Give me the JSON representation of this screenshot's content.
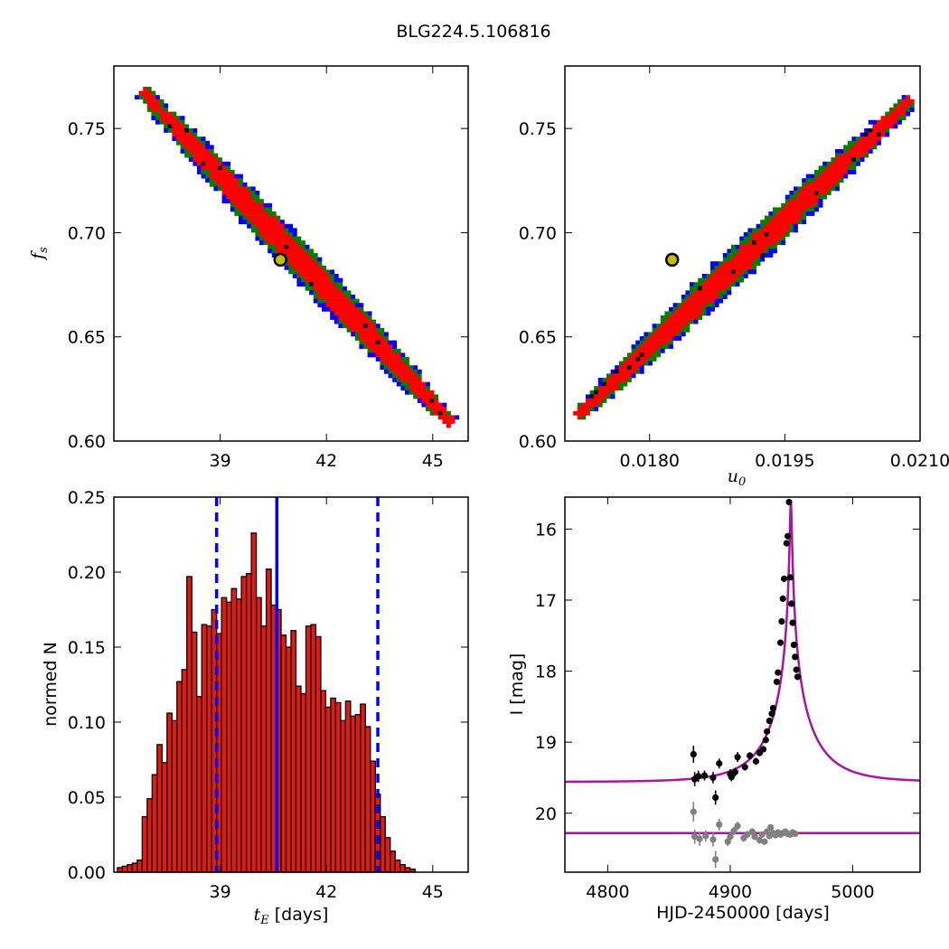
{
  "figure": {
    "title": "BLG224.5.106816"
  },
  "colors": {
    "sigma3": "#0000ff",
    "sigma2": "#007f00",
    "sigma1": "#ff0000",
    "dense": "#000000",
    "bestfit_face": "#bfbf00",
    "hist_bar": "#e31a10",
    "hist_line": "#0000ff",
    "model": "#a6169f",
    "data_main": "#000000",
    "data_resid": "#808080"
  },
  "chart_data": [
    {
      "id": "tE_fs",
      "type": "heatmap",
      "title": "",
      "xlabel": "",
      "ylabel": "f_s",
      "xlim": [
        36.0,
        46.0
      ],
      "ylim": [
        0.6,
        0.78
      ],
      "xticks": [
        39,
        42,
        45
      ],
      "xtick_labels": [
        "39",
        "42",
        "45"
      ],
      "yticks": [
        0.6,
        0.65,
        0.7,
        0.75
      ],
      "ytick_labels": [
        "0.60",
        "0.65",
        "0.70",
        "0.75"
      ],
      "ridge": {
        "x0": 36.8,
        "y0": 0.768,
        "x1": 45.5,
        "y1": 0.609
      },
      "best_fit": {
        "x": 40.7,
        "y": 0.687
      },
      "levels": [
        "3-sigma",
        "2-sigma",
        "1-sigma"
      ]
    },
    {
      "id": "u0_fs",
      "type": "heatmap",
      "title": "",
      "xlabel": "u_0",
      "ylabel": "",
      "xlim": [
        0.01706,
        0.021
      ],
      "ylim": [
        0.6,
        0.78
      ],
      "xticks": [
        0.018,
        0.0195,
        0.021
      ],
      "xtick_labels": [
        "0.0180",
        "0.0195",
        "0.0210"
      ],
      "yticks": [
        0.6,
        0.65,
        0.7,
        0.75
      ],
      "ytick_labels": [
        "0.60",
        "0.65",
        "0.70",
        "0.75"
      ],
      "ridge": {
        "x0": 0.0172,
        "y0": 0.612,
        "x1": 0.0209,
        "y1": 0.764
      },
      "best_fit": {
        "x": 0.01825,
        "y": 0.687
      },
      "levels": [
        "3-sigma",
        "2-sigma",
        "1-sigma"
      ]
    },
    {
      "id": "tE_hist",
      "type": "bar",
      "title": "",
      "xlabel": "t_E [days]",
      "ylabel": "normed N",
      "xlim": [
        36.0,
        46.0
      ],
      "ylim": [
        0.0,
        0.25
      ],
      "xticks": [
        39,
        42,
        45
      ],
      "xtick_labels": [
        "39",
        "42",
        "45"
      ],
      "yticks": [
        0.0,
        0.05,
        0.1,
        0.15,
        0.2,
        0.25
      ],
      "ytick_labels": [
        "0.00",
        "0.05",
        "0.10",
        "0.15",
        "0.20",
        "0.25"
      ],
      "bin_start": 36.1,
      "bin_width": 0.14,
      "values": [
        0.003,
        0.004,
        0.005,
        0.006,
        0.008,
        0.037,
        0.049,
        0.065,
        0.085,
        0.073,
        0.106,
        0.101,
        0.127,
        0.135,
        0.197,
        0.16,
        0.117,
        0.165,
        0.164,
        0.175,
        0.159,
        0.183,
        0.18,
        0.189,
        0.182,
        0.197,
        0.199,
        0.226,
        0.183,
        0.164,
        0.202,
        0.178,
        0.175,
        0.158,
        0.15,
        0.161,
        0.124,
        0.119,
        0.164,
        0.165,
        0.157,
        0.121,
        0.11,
        0.116,
        0.113,
        0.101,
        0.114,
        0.104,
        0.105,
        0.112,
        0.097,
        0.074,
        0.052,
        0.037,
        0.023,
        0.014,
        0.008,
        0.005,
        0.003,
        0.002
      ],
      "median": 40.6,
      "lower": 38.9,
      "upper": 43.45
    },
    {
      "id": "lightcurve",
      "type": "scatter",
      "title": "",
      "xlabel": "HJD-2450000 [days]",
      "ylabel": "I [mag]",
      "xlim": [
        4765,
        5055
      ],
      "ylim": [
        20.83,
        15.55
      ],
      "xticks": [
        4800,
        4900,
        5000
      ],
      "xtick_labels": [
        "4800",
        "4900",
        "5000"
      ],
      "yticks": [
        16,
        17,
        18,
        19,
        20
      ],
      "ytick_labels": [
        "16",
        "17",
        "18",
        "19",
        "20"
      ],
      "model": {
        "t0": 4949.5,
        "tE": 40.6,
        "u0": 0.0183,
        "fs": 0.687,
        "I_base": 19.56
      },
      "residual_level": 20.28,
      "points": [
        {
          "x": 4870,
          "y": 19.17,
          "err": 0.12
        },
        {
          "x": 4871,
          "y": 19.52,
          "err": 0.1
        },
        {
          "x": 4874,
          "y": 19.48,
          "err": 0.08
        },
        {
          "x": 4879,
          "y": 19.47,
          "err": 0.07
        },
        {
          "x": 4886,
          "y": 19.5,
          "err": 0.08
        },
        {
          "x": 4888,
          "y": 19.78,
          "err": 0.1
        },
        {
          "x": 4891,
          "y": 19.3,
          "err": 0.07
        },
        {
          "x": 4900,
          "y": 19.45,
          "err": 0.07
        },
        {
          "x": 4901,
          "y": 19.49,
          "err": 0.06
        },
        {
          "x": 4904,
          "y": 19.42,
          "err": 0.06
        },
        {
          "x": 4906,
          "y": 19.21,
          "err": 0.07
        },
        {
          "x": 4912,
          "y": 19.35,
          "err": 0.05
        },
        {
          "x": 4916,
          "y": 19.19,
          "err": 0.05
        },
        {
          "x": 4921,
          "y": 19.27,
          "err": 0.05
        },
        {
          "x": 4924,
          "y": 19.15,
          "err": 0.05
        },
        {
          "x": 4927,
          "y": 19.1,
          "err": 0.04
        },
        {
          "x": 4929,
          "y": 18.97,
          "err": 0.04
        },
        {
          "x": 4930,
          "y": 18.85,
          "err": 0.04
        },
        {
          "x": 4932,
          "y": 18.7,
          "err": 0.04
        },
        {
          "x": 4934,
          "y": 18.6,
          "err": 0.03
        },
        {
          "x": 4935,
          "y": 18.52,
          "err": 0.03
        },
        {
          "x": 4938,
          "y": 18.15,
          "err": 0.03
        },
        {
          "x": 4939,
          "y": 18.02,
          "err": 0.03
        },
        {
          "x": 4941,
          "y": 17.6,
          "err": 0.03
        },
        {
          "x": 4942,
          "y": 17.3,
          "err": 0.03
        },
        {
          "x": 4943,
          "y": 16.98,
          "err": 0.03
        },
        {
          "x": 4944,
          "y": 16.7,
          "err": 0.03
        },
        {
          "x": 4946,
          "y": 16.2,
          "err": 0.02
        },
        {
          "x": 4947,
          "y": 16.1,
          "err": 0.02
        },
        {
          "x": 4948,
          "y": 15.62,
          "err": 0.02
        },
        {
          "x": 4949,
          "y": 16.68,
          "err": 0.03
        },
        {
          "x": 4950,
          "y": 17.05,
          "err": 0.03
        },
        {
          "x": 4951,
          "y": 17.32,
          "err": 0.03
        },
        {
          "x": 4952,
          "y": 17.63,
          "err": 0.03
        },
        {
          "x": 4953,
          "y": 17.8,
          "err": 0.03
        },
        {
          "x": 4954,
          "y": 17.98,
          "err": 0.03
        },
        {
          "x": 4955,
          "y": 18.08,
          "err": 0.03
        }
      ],
      "residuals": [
        {
          "x": 4870,
          "y": 19.98,
          "err": 0.14
        },
        {
          "x": 4871,
          "y": 20.33,
          "err": 0.1
        },
        {
          "x": 4875,
          "y": 20.36,
          "err": 0.1
        },
        {
          "x": 4880,
          "y": 20.32,
          "err": 0.08
        },
        {
          "x": 4886,
          "y": 20.37,
          "err": 0.1
        },
        {
          "x": 4888,
          "y": 20.65,
          "err": 0.12
        },
        {
          "x": 4891,
          "y": 20.16,
          "err": 0.08
        },
        {
          "x": 4898,
          "y": 20.4,
          "err": 0.06
        },
        {
          "x": 4900,
          "y": 20.33,
          "err": 0.07
        },
        {
          "x": 4903,
          "y": 20.25,
          "err": 0.06
        },
        {
          "x": 4906,
          "y": 20.18,
          "err": 0.06
        },
        {
          "x": 4911,
          "y": 20.35,
          "err": 0.05
        },
        {
          "x": 4914,
          "y": 20.3,
          "err": 0.05
        },
        {
          "x": 4918,
          "y": 20.26,
          "err": 0.05
        },
        {
          "x": 4920,
          "y": 20.33,
          "err": 0.05
        },
        {
          "x": 4924,
          "y": 20.38,
          "err": 0.05
        },
        {
          "x": 4926,
          "y": 20.3,
          "err": 0.04
        },
        {
          "x": 4928,
          "y": 20.4,
          "err": 0.04
        },
        {
          "x": 4930,
          "y": 20.26,
          "err": 0.04
        },
        {
          "x": 4932,
          "y": 20.32,
          "err": 0.04
        },
        {
          "x": 4933,
          "y": 20.2,
          "err": 0.04
        },
        {
          "x": 4935,
          "y": 20.28,
          "err": 0.03
        },
        {
          "x": 4937,
          "y": 20.31,
          "err": 0.03
        },
        {
          "x": 4939,
          "y": 20.27,
          "err": 0.03
        },
        {
          "x": 4941,
          "y": 20.3,
          "err": 0.03
        },
        {
          "x": 4943,
          "y": 20.28,
          "err": 0.03
        },
        {
          "x": 4945,
          "y": 20.26,
          "err": 0.03
        },
        {
          "x": 4947,
          "y": 20.29,
          "err": 0.03
        },
        {
          "x": 4949,
          "y": 20.3,
          "err": 0.03
        },
        {
          "x": 4951,
          "y": 20.27,
          "err": 0.03
        },
        {
          "x": 4953,
          "y": 20.29,
          "err": 0.03
        }
      ]
    }
  ]
}
